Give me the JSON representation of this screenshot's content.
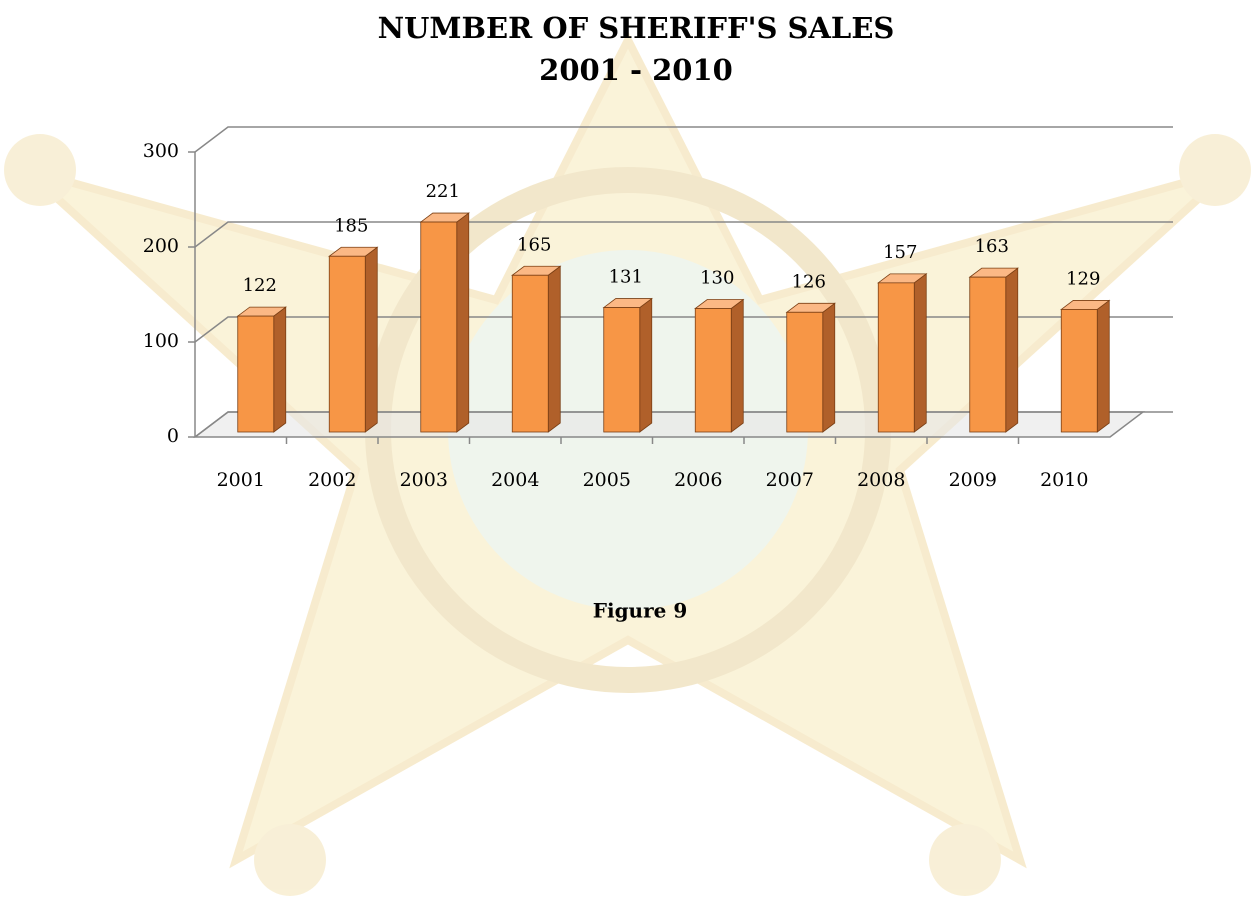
{
  "chart_data": {
    "type": "bar3d",
    "title": "NUMBER OF SHERIFF'S SALES",
    "subtitle": "2001 - 2010",
    "caption": "Figure 9",
    "categories": [
      "2001",
      "2002",
      "2003",
      "2004",
      "2005",
      "2006",
      "2007",
      "2008",
      "2009",
      "2010"
    ],
    "values": [
      122,
      185,
      221,
      165,
      131,
      130,
      126,
      157,
      163,
      129
    ],
    "color": "#f79646",
    "ylim": [
      0,
      300
    ],
    "yticks": [
      0,
      100,
      200,
      300
    ],
    "grid": true
  }
}
